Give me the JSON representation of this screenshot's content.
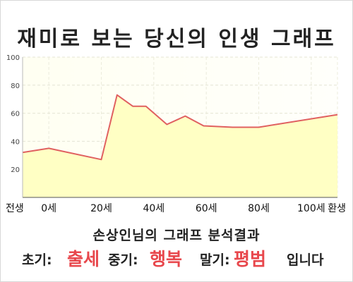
{
  "title": "재미로 보는 당신의 인생 그래프",
  "subtitle": "손상인님의 그래프 분석결과",
  "result": {
    "early_label": "초기:",
    "early_value": "출세",
    "mid_label": "중기:",
    "mid_value": "행복",
    "late_label": "말기:",
    "late_value": "평범",
    "ending": "입니다"
  },
  "colors": {
    "line": "#e06060",
    "fill": "#ffffc4",
    "accent": "#e8474c"
  },
  "chart_data": {
    "type": "area",
    "title": "재미로 보는 당신의 인생 그래프",
    "xlabel": "",
    "ylabel": "",
    "ylim": [
      0,
      100
    ],
    "xlim": [
      -10,
      110
    ],
    "yticks": [
      20,
      40,
      60,
      80,
      100
    ],
    "xticks": [
      {
        "value": -10,
        "label": "전생"
      },
      {
        "value": 0,
        "label": "0세"
      },
      {
        "value": 20,
        "label": "20세"
      },
      {
        "value": 40,
        "label": "40세"
      },
      {
        "value": 60,
        "label": "60세"
      },
      {
        "value": 80,
        "label": "80세"
      },
      {
        "value": 100,
        "label": "100세"
      },
      {
        "value": 110,
        "label": "환생"
      }
    ],
    "grid": true,
    "points": [
      {
        "x": -10,
        "y": 32
      },
      {
        "x": 0,
        "y": 35
      },
      {
        "x": 20,
        "y": 27
      },
      {
        "x": 26,
        "y": 73
      },
      {
        "x": 32,
        "y": 65
      },
      {
        "x": 37,
        "y": 65
      },
      {
        "x": 45,
        "y": 52
      },
      {
        "x": 52,
        "y": 58
      },
      {
        "x": 59,
        "y": 51
      },
      {
        "x": 70,
        "y": 50
      },
      {
        "x": 80,
        "y": 50
      },
      {
        "x": 110,
        "y": 59
      }
    ]
  }
}
